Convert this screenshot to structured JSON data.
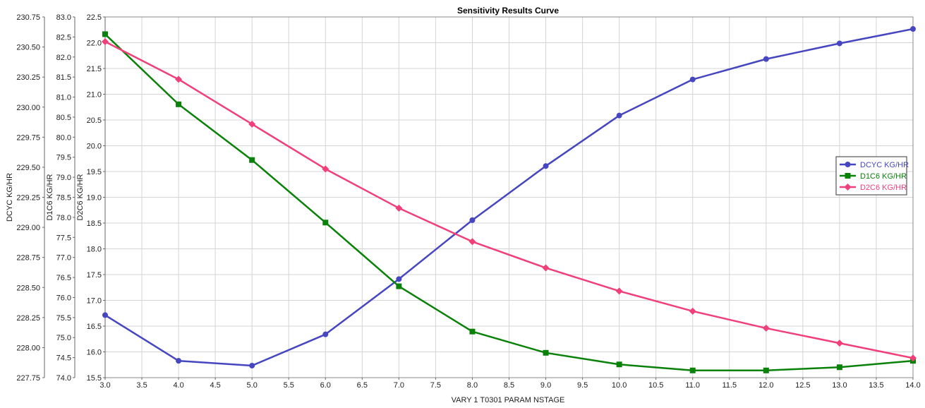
{
  "chart_data": {
    "type": "line",
    "title": "Sensitivity Results Curve",
    "xlabel": "VARY   1 T0301 PARAM NSTAGE",
    "xlim": [
      3.0,
      14.0
    ],
    "x_ticks": [
      "3.0",
      "3.5",
      "4.0",
      "4.5",
      "5.0",
      "5.5",
      "6.0",
      "6.5",
      "7.0",
      "7.5",
      "8.0",
      "8.5",
      "9.0",
      "9.5",
      "10.0",
      "10.5",
      "11.0",
      "11.5",
      "12.0",
      "12.5",
      "13.0",
      "13.5",
      "14.0"
    ],
    "x": [
      3,
      4,
      5,
      6,
      7,
      8,
      9,
      10,
      11,
      12,
      13,
      14
    ],
    "grid": true,
    "legend_position": "right",
    "axes": [
      {
        "label": "DCYC KG/HR",
        "ylim": [
          227.75,
          230.75
        ],
        "ticks": [
          "227.75",
          "228.00",
          "228.25",
          "228.50",
          "228.75",
          "229.00",
          "229.25",
          "229.50",
          "229.75",
          "230.00",
          "230.25",
          "230.50",
          "230.75"
        ]
      },
      {
        "label": "D1C6 KG/HR",
        "ylim": [
          74.0,
          83.0
        ],
        "ticks": [
          "74.0",
          "74.5",
          "75.0",
          "75.5",
          "76.0",
          "76.5",
          "77.0",
          "77.5",
          "78.0",
          "78.5",
          "79.0",
          "79.5",
          "80.0",
          "80.5",
          "81.0",
          "81.5",
          "82.0",
          "82.5",
          "83.0"
        ]
      },
      {
        "label": "D2C6 KG/HR",
        "ylim": [
          15.5,
          22.5
        ],
        "ticks": [
          "15.5",
          "16.0",
          "16.5",
          "17.0",
          "17.5",
          "18.0",
          "18.5",
          "19.0",
          "19.5",
          "20.0",
          "20.5",
          "21.0",
          "21.5",
          "22.0",
          "22.5"
        ]
      }
    ],
    "series": [
      {
        "name": "DCYC KG/HR",
        "axis": 0,
        "color": "#4646c0",
        "marker": "circle",
        "values": [
          228.27,
          227.89,
          227.85,
          228.11,
          228.57,
          229.06,
          229.51,
          229.93,
          230.23,
          230.4,
          230.53,
          230.65
        ]
      },
      {
        "name": "D1C6 KG/HR",
        "axis": 1,
        "color": "#0a820a",
        "marker": "square",
        "values": [
          82.57,
          80.82,
          79.43,
          77.87,
          76.28,
          75.15,
          74.62,
          74.33,
          74.18,
          74.18,
          74.26,
          74.42
        ]
      },
      {
        "name": "D2C6 KG/HR",
        "axis": 2,
        "color": "#f0407a",
        "marker": "diamond",
        "values": [
          22.02,
          21.29,
          20.42,
          19.55,
          18.79,
          18.14,
          17.63,
          17.18,
          16.79,
          16.46,
          16.17,
          15.88
        ]
      }
    ]
  }
}
